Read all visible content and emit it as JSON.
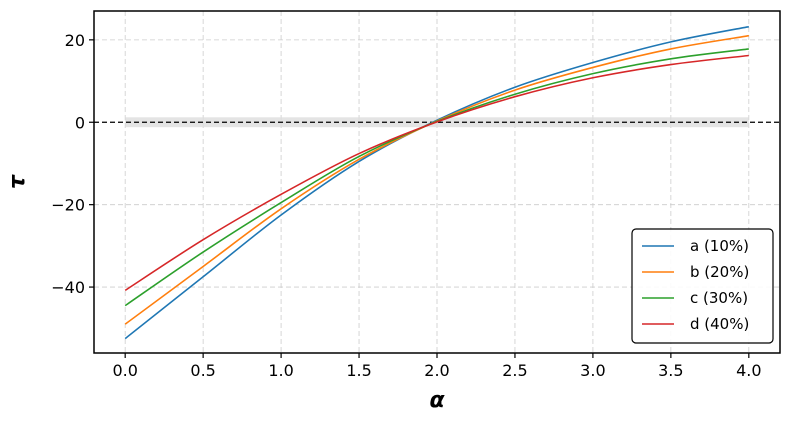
{
  "chart_data": {
    "type": "line",
    "title": "",
    "xlabel": "α",
    "ylabel": "τ",
    "xlim": [
      -0.2,
      4.2
    ],
    "ylim": [
      -56,
      27
    ],
    "x_ticks": [
      0.0,
      0.5,
      1.0,
      1.5,
      2.0,
      2.5,
      3.0,
      3.5,
      4.0
    ],
    "x_tick_labels": [
      "0.0",
      "0.5",
      "1.0",
      "1.5",
      "2.0",
      "2.5",
      "3.0",
      "3.5",
      "4.0"
    ],
    "y_ticks": [
      -40,
      -20,
      0,
      20
    ],
    "y_tick_labels": [
      "−40",
      "−20",
      "0",
      "20"
    ],
    "grid": true,
    "legend_position": "lower-right",
    "reference_line": {
      "y": 0,
      "style": "dashed",
      "color": "#000000"
    },
    "reference_band": {
      "y_range": [
        -1.2,
        1.2
      ],
      "color": "#dddddd"
    },
    "x": [
      0.0,
      0.5,
      1.0,
      1.5,
      2.0,
      2.5,
      3.0,
      3.5,
      4.0
    ],
    "series": [
      {
        "name": "a (10%)",
        "color": "#1f77b4",
        "values": [
          -52.5,
          -37.5,
          -22.5,
          -9.5,
          0.5,
          8.5,
          14.5,
          19.5,
          23.2
        ]
      },
      {
        "name": "b (20%)",
        "color": "#ff7f0e",
        "values": [
          -49.0,
          -35.0,
          -21.0,
          -9.0,
          0.3,
          7.8,
          13.3,
          17.8,
          21.0
        ]
      },
      {
        "name": "c (30%)",
        "color": "#2ca02c",
        "values": [
          -44.5,
          -31.5,
          -19.5,
          -8.3,
          0.2,
          6.8,
          11.8,
          15.4,
          17.8
        ]
      },
      {
        "name": "d (40%)",
        "color": "#d62728",
        "values": [
          -40.8,
          -28.5,
          -17.5,
          -7.6,
          0.1,
          6.2,
          10.8,
          14.0,
          16.2
        ]
      }
    ]
  }
}
